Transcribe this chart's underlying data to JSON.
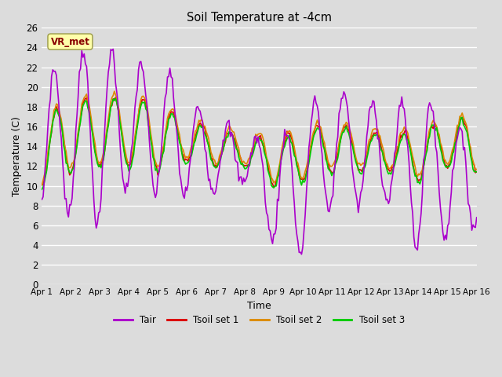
{
  "title": "Soil Temperature at -4cm",
  "xlabel": "Time",
  "ylabel": "Temperature (C)",
  "ylim": [
    0,
    26
  ],
  "yticks": [
    0,
    2,
    4,
    6,
    8,
    10,
    12,
    14,
    16,
    18,
    20,
    22,
    24,
    26
  ],
  "x_labels": [
    "Apr 1",
    "Apr 2",
    "Apr 3",
    "Apr 4",
    "Apr 5",
    "Apr 6",
    "Apr 7",
    "Apr 8",
    "Apr 9",
    "Apr 10",
    "Apr 11",
    "Apr 12",
    "Apr 13",
    "Apr 14",
    "Apr 15",
    "Apr 16"
  ],
  "colors": {
    "Tair": "#aa00cc",
    "Tsoil1": "#dd0000",
    "Tsoil2": "#dd8800",
    "Tsoil3": "#00cc00"
  },
  "linewidth": 1.2,
  "legend_labels": [
    "Tair",
    "Tsoil set 1",
    "Tsoil set 2",
    "Tsoil set 3"
  ],
  "annotation_text": "VR_met",
  "annotation_box_color": "#ffffaa",
  "annotation_text_color": "#880000",
  "plot_bg_color": "#dcdcdc",
  "grid_color": "#ffffff",
  "n_points": 361,
  "hours_total": 360
}
